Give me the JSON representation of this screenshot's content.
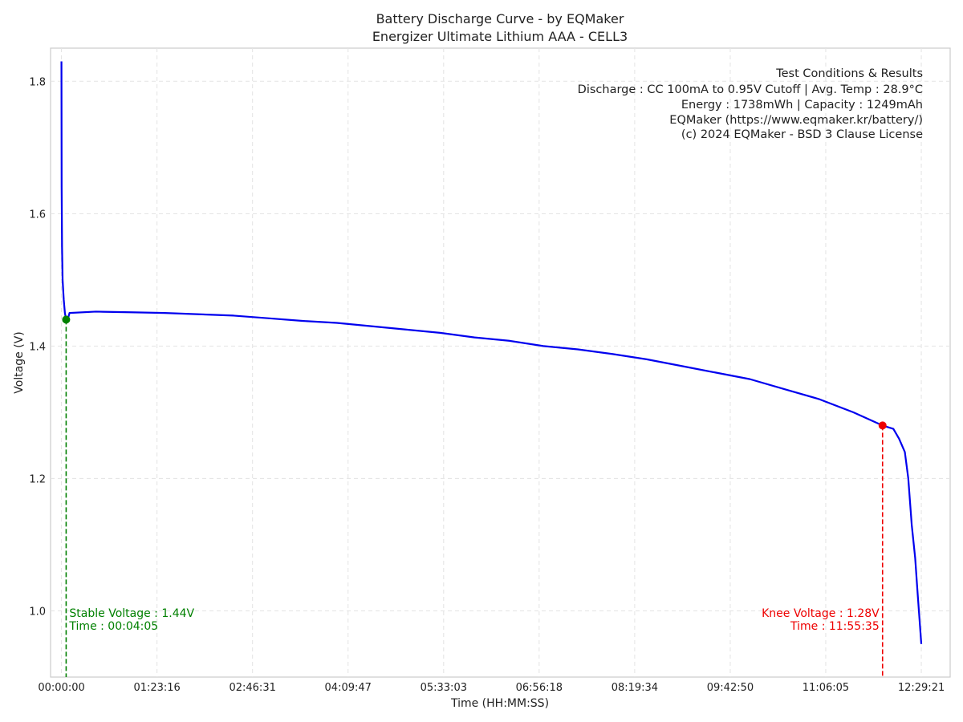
{
  "chart_data": {
    "type": "line",
    "title": "Battery Discharge Curve - by EQMaker",
    "subtitle": "Energizer Ultimate Lithium AAA - CELL3",
    "xlabel": "Time (HH:MM:SS)",
    "ylabel": "Voltage (V)",
    "xlim": [
      "-00:09:30",
      "12:54:30"
    ],
    "ylim": [
      0.9,
      1.85
    ],
    "xticks": [
      "00:00:00",
      "01:23:16",
      "02:46:31",
      "04:09:47",
      "05:33:03",
      "06:56:18",
      "08:19:34",
      "09:42:50",
      "11:06:05",
      "12:29:21"
    ],
    "yticks": [
      1.0,
      1.2,
      1.4,
      1.6,
      1.8
    ],
    "ytick_labels": [
      "1.0",
      "1.2",
      "1.4",
      "1.6",
      "1.8"
    ],
    "grid": true,
    "series": [
      {
        "color": "#0000ee",
        "points": [
          [
            "00:00:00",
            1.83
          ],
          [
            "00:00:10",
            1.64
          ],
          [
            "00:00:30",
            1.55
          ],
          [
            "00:01:00",
            1.5
          ],
          [
            "00:02:00",
            1.47
          ],
          [
            "00:03:00",
            1.45
          ],
          [
            "00:04:05",
            1.44
          ],
          [
            "00:05:30",
            1.44
          ],
          [
            "00:07:00",
            1.45
          ],
          [
            "00:30:00",
            1.452
          ],
          [
            "01:00:00",
            1.451
          ],
          [
            "01:30:00",
            1.45
          ],
          [
            "02:00:00",
            1.448
          ],
          [
            "02:30:00",
            1.446
          ],
          [
            "03:00:00",
            1.442
          ],
          [
            "03:30:00",
            1.438
          ],
          [
            "04:00:00",
            1.435
          ],
          [
            "04:30:00",
            1.43
          ],
          [
            "05:00:00",
            1.425
          ],
          [
            "05:30:00",
            1.42
          ],
          [
            "06:00:00",
            1.413
          ],
          [
            "06:30:00",
            1.408
          ],
          [
            "07:00:00",
            1.4
          ],
          [
            "07:30:00",
            1.395
          ],
          [
            "08:00:00",
            1.388
          ],
          [
            "08:30:00",
            1.38
          ],
          [
            "09:00:00",
            1.37
          ],
          [
            "09:30:00",
            1.36
          ],
          [
            "10:00:00",
            1.35
          ],
          [
            "10:30:00",
            1.335
          ],
          [
            "11:00:00",
            1.32
          ],
          [
            "11:30:00",
            1.3
          ],
          [
            "11:55:35",
            1.28
          ],
          [
            "12:05:00",
            1.275
          ],
          [
            "12:10:00",
            1.26
          ],
          [
            "12:15:00",
            1.24
          ],
          [
            "12:18:00",
            1.2
          ],
          [
            "12:21:00",
            1.13
          ],
          [
            "12:24:00",
            1.08
          ],
          [
            "12:26:00",
            1.03
          ],
          [
            "12:29:21",
            0.95
          ]
        ]
      }
    ],
    "markers": [
      {
        "time": "00:04:05",
        "voltage": 1.44,
        "color": "#008000",
        "label_line1": "Stable Voltage : 1.44V",
        "label_line2": "Time : 00:04:05",
        "align": "left"
      },
      {
        "time": "11:55:35",
        "voltage": 1.28,
        "color": "#ee0000",
        "label_line1": "Knee Voltage : 1.28V",
        "label_line2": "Time : 11:55:35",
        "align": "right"
      }
    ],
    "annotation_lines": [
      "Test Conditions & Results",
      "Discharge : CC 100mA to 0.95V Cutoff | Avg. Temp : 28.9°C",
      "Energy : 1738mWh | Capacity : 1249mAh",
      "EQMaker (https://www.eqmaker.kr/battery/)",
      "(c) 2024 EQMaker - BSD 3 Clause License"
    ]
  }
}
